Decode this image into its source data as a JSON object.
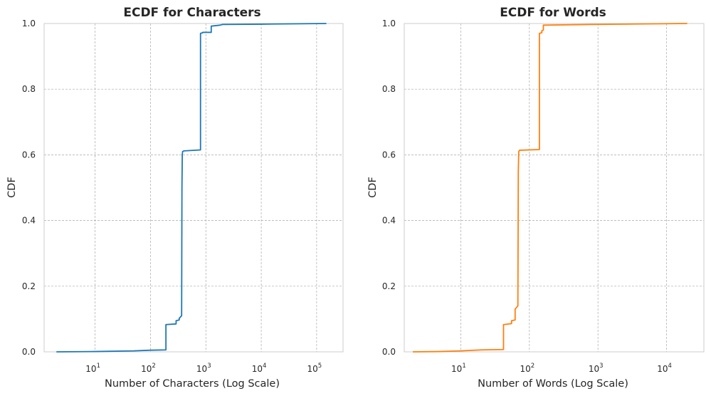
{
  "chart_data": [
    {
      "type": "line",
      "title": "ECDF for Characters",
      "xlabel": "Number of Characters (Log Scale)",
      "ylabel": "CDF",
      "xscale": "log",
      "xlim": [
        1.2,
        300000
      ],
      "ylim": [
        0,
        1
      ],
      "xticks": [
        10,
        100,
        1000,
        10000,
        100000
      ],
      "xtick_labels": [
        {
          "base": "10",
          "exp": "1"
        },
        {
          "base": "10",
          "exp": "2"
        },
        {
          "base": "10",
          "exp": "3"
        },
        {
          "base": "10",
          "exp": "4"
        },
        {
          "base": "10",
          "exp": "5"
        }
      ],
      "yticks": [
        0,
        0.2,
        0.4,
        0.6,
        0.8,
        1.0
      ],
      "ytick_labels": [
        "0.0",
        "0.2",
        "0.4",
        "0.6",
        "0.8",
        "1.0"
      ],
      "grid": true,
      "color": "#1f77b4",
      "series": [
        {
          "x": [
            2,
            10,
            50,
            100,
            190,
            190,
            290,
            290,
            330,
            330,
            365,
            370,
            375,
            380,
            400,
            800,
            800,
            880,
            880,
            1250,
            1250,
            1800,
            2000,
            10000,
            150000
          ],
          "y": [
            0.0,
            0.001,
            0.003,
            0.005,
            0.006,
            0.083,
            0.085,
            0.095,
            0.097,
            0.102,
            0.11,
            0.5,
            0.6,
            0.61,
            0.612,
            0.615,
            0.97,
            0.972,
            0.973,
            0.973,
            0.992,
            0.995,
            0.997,
            0.998,
            1.0
          ]
        }
      ]
    },
    {
      "type": "line",
      "title": "ECDF for Words",
      "xlabel": "Number of Words (Log Scale)",
      "ylabel": "CDF",
      "xscale": "log",
      "xlim": [
        1.5,
        35000
      ],
      "ylim": [
        0,
        1
      ],
      "xticks": [
        10,
        100,
        1000,
        10000
      ],
      "xtick_labels": [
        {
          "base": "10",
          "exp": "1"
        },
        {
          "base": "10",
          "exp": "2"
        },
        {
          "base": "10",
          "exp": "3"
        },
        {
          "base": "10",
          "exp": "4"
        }
      ],
      "yticks": [
        0,
        0.2,
        0.4,
        0.6,
        0.8,
        1.0
      ],
      "ytick_labels": [
        "0.0",
        "0.2",
        "0.4",
        "0.6",
        "0.8",
        "1.0"
      ],
      "grid": true,
      "color": "#ff7f0e",
      "series": [
        {
          "x": [
            2,
            5,
            10,
            20,
            42,
            42,
            55,
            55,
            62,
            62,
            68,
            69,
            70,
            72,
            140,
            140,
            152,
            152,
            160,
            160,
            800,
            20000
          ],
          "y": [
            0.0,
            0.001,
            0.003,
            0.006,
            0.007,
            0.083,
            0.086,
            0.095,
            0.097,
            0.13,
            0.14,
            0.55,
            0.61,
            0.614,
            0.616,
            0.97,
            0.972,
            0.978,
            0.98,
            0.995,
            0.997,
            1.0
          ]
        }
      ]
    }
  ]
}
